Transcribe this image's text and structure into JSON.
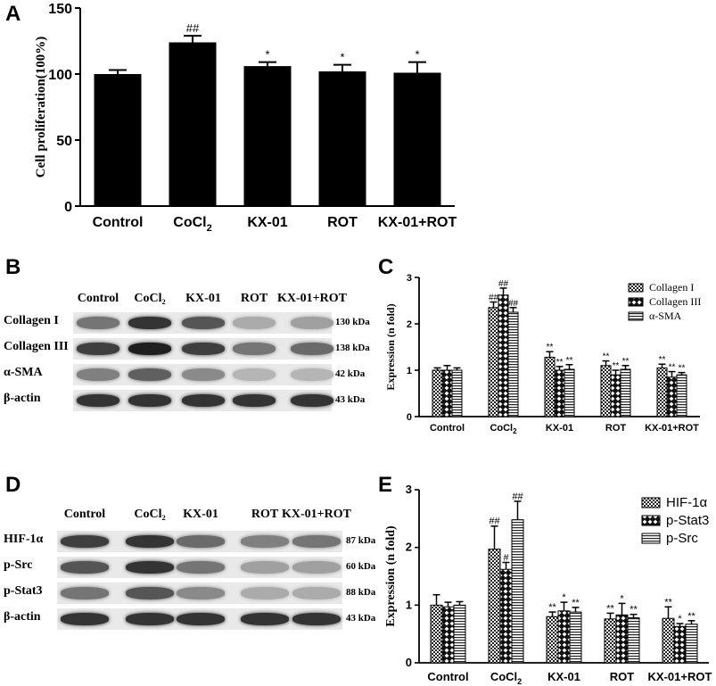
{
  "panels": {
    "A": "A",
    "B": "B",
    "C": "C",
    "D": "D",
    "E": "E"
  },
  "blot_B": {
    "lanes": [
      "Control",
      "CoCl₂",
      "KX-01",
      "ROT",
      "KX-01+ROT"
    ],
    "rows": [
      {
        "label": "Collagen I",
        "kda": "130 kDa",
        "intensity": [
          0.55,
          0.85,
          0.7,
          0.3,
          0.35
        ]
      },
      {
        "label": "Collagen III",
        "kda": "138 kDa",
        "intensity": [
          0.8,
          0.95,
          0.8,
          0.55,
          0.6
        ]
      },
      {
        "label": "α-SMA",
        "kda": "42 kDa",
        "intensity": [
          0.5,
          0.65,
          0.45,
          0.25,
          0.25
        ]
      },
      {
        "label": "β-actin",
        "kda": "43 kDa",
        "intensity": [
          0.85,
          0.85,
          0.85,
          0.85,
          0.85
        ]
      }
    ]
  },
  "blot_D": {
    "lanes": [
      "Control",
      "CoCl₂",
      "KX-01",
      "ROT",
      "KX-01+ROT"
    ],
    "rows": [
      {
        "label": "HIF-1α",
        "kda": "87 kDa",
        "intensity": [
          0.8,
          0.85,
          0.6,
          0.5,
          0.55
        ]
      },
      {
        "label": "p-Src",
        "kda": "60 kDa",
        "intensity": [
          0.7,
          0.85,
          0.55,
          0.35,
          0.35
        ]
      },
      {
        "label": "p-Stat3",
        "kda": "88 kDa",
        "intensity": [
          0.55,
          0.7,
          0.45,
          0.3,
          0.3
        ]
      },
      {
        "label": "β-actin",
        "kda": "43 kDa",
        "intensity": [
          0.85,
          0.85,
          0.85,
          0.85,
          0.85
        ]
      }
    ]
  },
  "chart_data": [
    {
      "panel": "A",
      "type": "bar",
      "categories": [
        "Control",
        "CoCl2",
        "KX-01",
        "ROT",
        "KX-01+ROT"
      ],
      "category_subscripts": [
        "",
        "2",
        "",
        "",
        ""
      ],
      "values": [
        100,
        124,
        106,
        102,
        101
      ],
      "errors": [
        3,
        5,
        3,
        5,
        8
      ],
      "annotations": [
        "",
        "##",
        "*",
        "*",
        "*"
      ],
      "ylabel": "Cell proliferation(100%)",
      "ylim": [
        0,
        150
      ],
      "yticks": [
        0,
        50,
        100,
        150
      ],
      "colors": {
        "bar": "#000000"
      }
    },
    {
      "panel": "C",
      "type": "bar",
      "categories": [
        "Control",
        "CoCl2",
        "KX-01",
        "ROT",
        "KX-01+ROT"
      ],
      "category_subscripts": [
        "",
        "2",
        "",
        "",
        ""
      ],
      "series": [
        {
          "name": "Collagen I",
          "pattern": "checker",
          "values": [
            1.0,
            2.35,
            1.28,
            1.1,
            1.05
          ],
          "errors": [
            0.05,
            0.12,
            0.12,
            0.1,
            0.08
          ],
          "annotations": [
            "",
            "##",
            "**",
            "**",
            "**"
          ]
        },
        {
          "name": "Collagen III",
          "pattern": "diamond",
          "values": [
            1.0,
            2.62,
            1.0,
            0.9,
            0.85
          ],
          "errors": [
            0.1,
            0.15,
            0.08,
            0.1,
            0.12
          ],
          "annotations": [
            "",
            "##",
            "**",
            "**",
            "**"
          ]
        },
        {
          "name": "α-SMA",
          "pattern": "hlines",
          "values": [
            1.0,
            2.25,
            1.02,
            1.02,
            0.9
          ],
          "errors": [
            0.05,
            0.1,
            0.1,
            0.08,
            0.05
          ],
          "annotations": [
            "",
            "##",
            "**",
            "**",
            "**"
          ]
        }
      ],
      "ylabel": "Expression (n fold)",
      "ylim": [
        0,
        3
      ],
      "yticks": [
        0,
        1,
        2,
        3
      ],
      "legend": "top-right"
    },
    {
      "panel": "E",
      "type": "bar",
      "categories": [
        "Control",
        "CoCl2",
        "KX-01",
        "ROT",
        "KX-01+ROT"
      ],
      "category_subscripts": [
        "",
        "2",
        "",
        "",
        ""
      ],
      "series": [
        {
          "name": "HIF-1α",
          "pattern": "checker",
          "values": [
            1.0,
            1.97,
            0.8,
            0.76,
            0.77
          ],
          "errors": [
            0.18,
            0.4,
            0.08,
            0.1,
            0.2
          ],
          "annotations": [
            "",
            "##",
            "**",
            "**",
            "**"
          ]
        },
        {
          "name": "p-Stat3",
          "pattern": "diamond",
          "values": [
            0.97,
            1.62,
            0.9,
            0.83,
            0.63
          ],
          "errors": [
            0.08,
            0.12,
            0.15,
            0.2,
            0.05
          ],
          "annotations": [
            "",
            "#",
            "*",
            "*",
            "*"
          ]
        },
        {
          "name": "p-Src",
          "pattern": "hlines",
          "values": [
            1.0,
            2.48,
            0.88,
            0.78,
            0.67
          ],
          "errors": [
            0.06,
            0.32,
            0.08,
            0.06,
            0.06
          ],
          "annotations": [
            "",
            "##",
            "**",
            "**",
            "**"
          ]
        }
      ],
      "ylabel": "Expression (n fold)",
      "ylim": [
        0,
        3
      ],
      "yticks": [
        0,
        1,
        2,
        3
      ],
      "legend": "top-right"
    }
  ]
}
